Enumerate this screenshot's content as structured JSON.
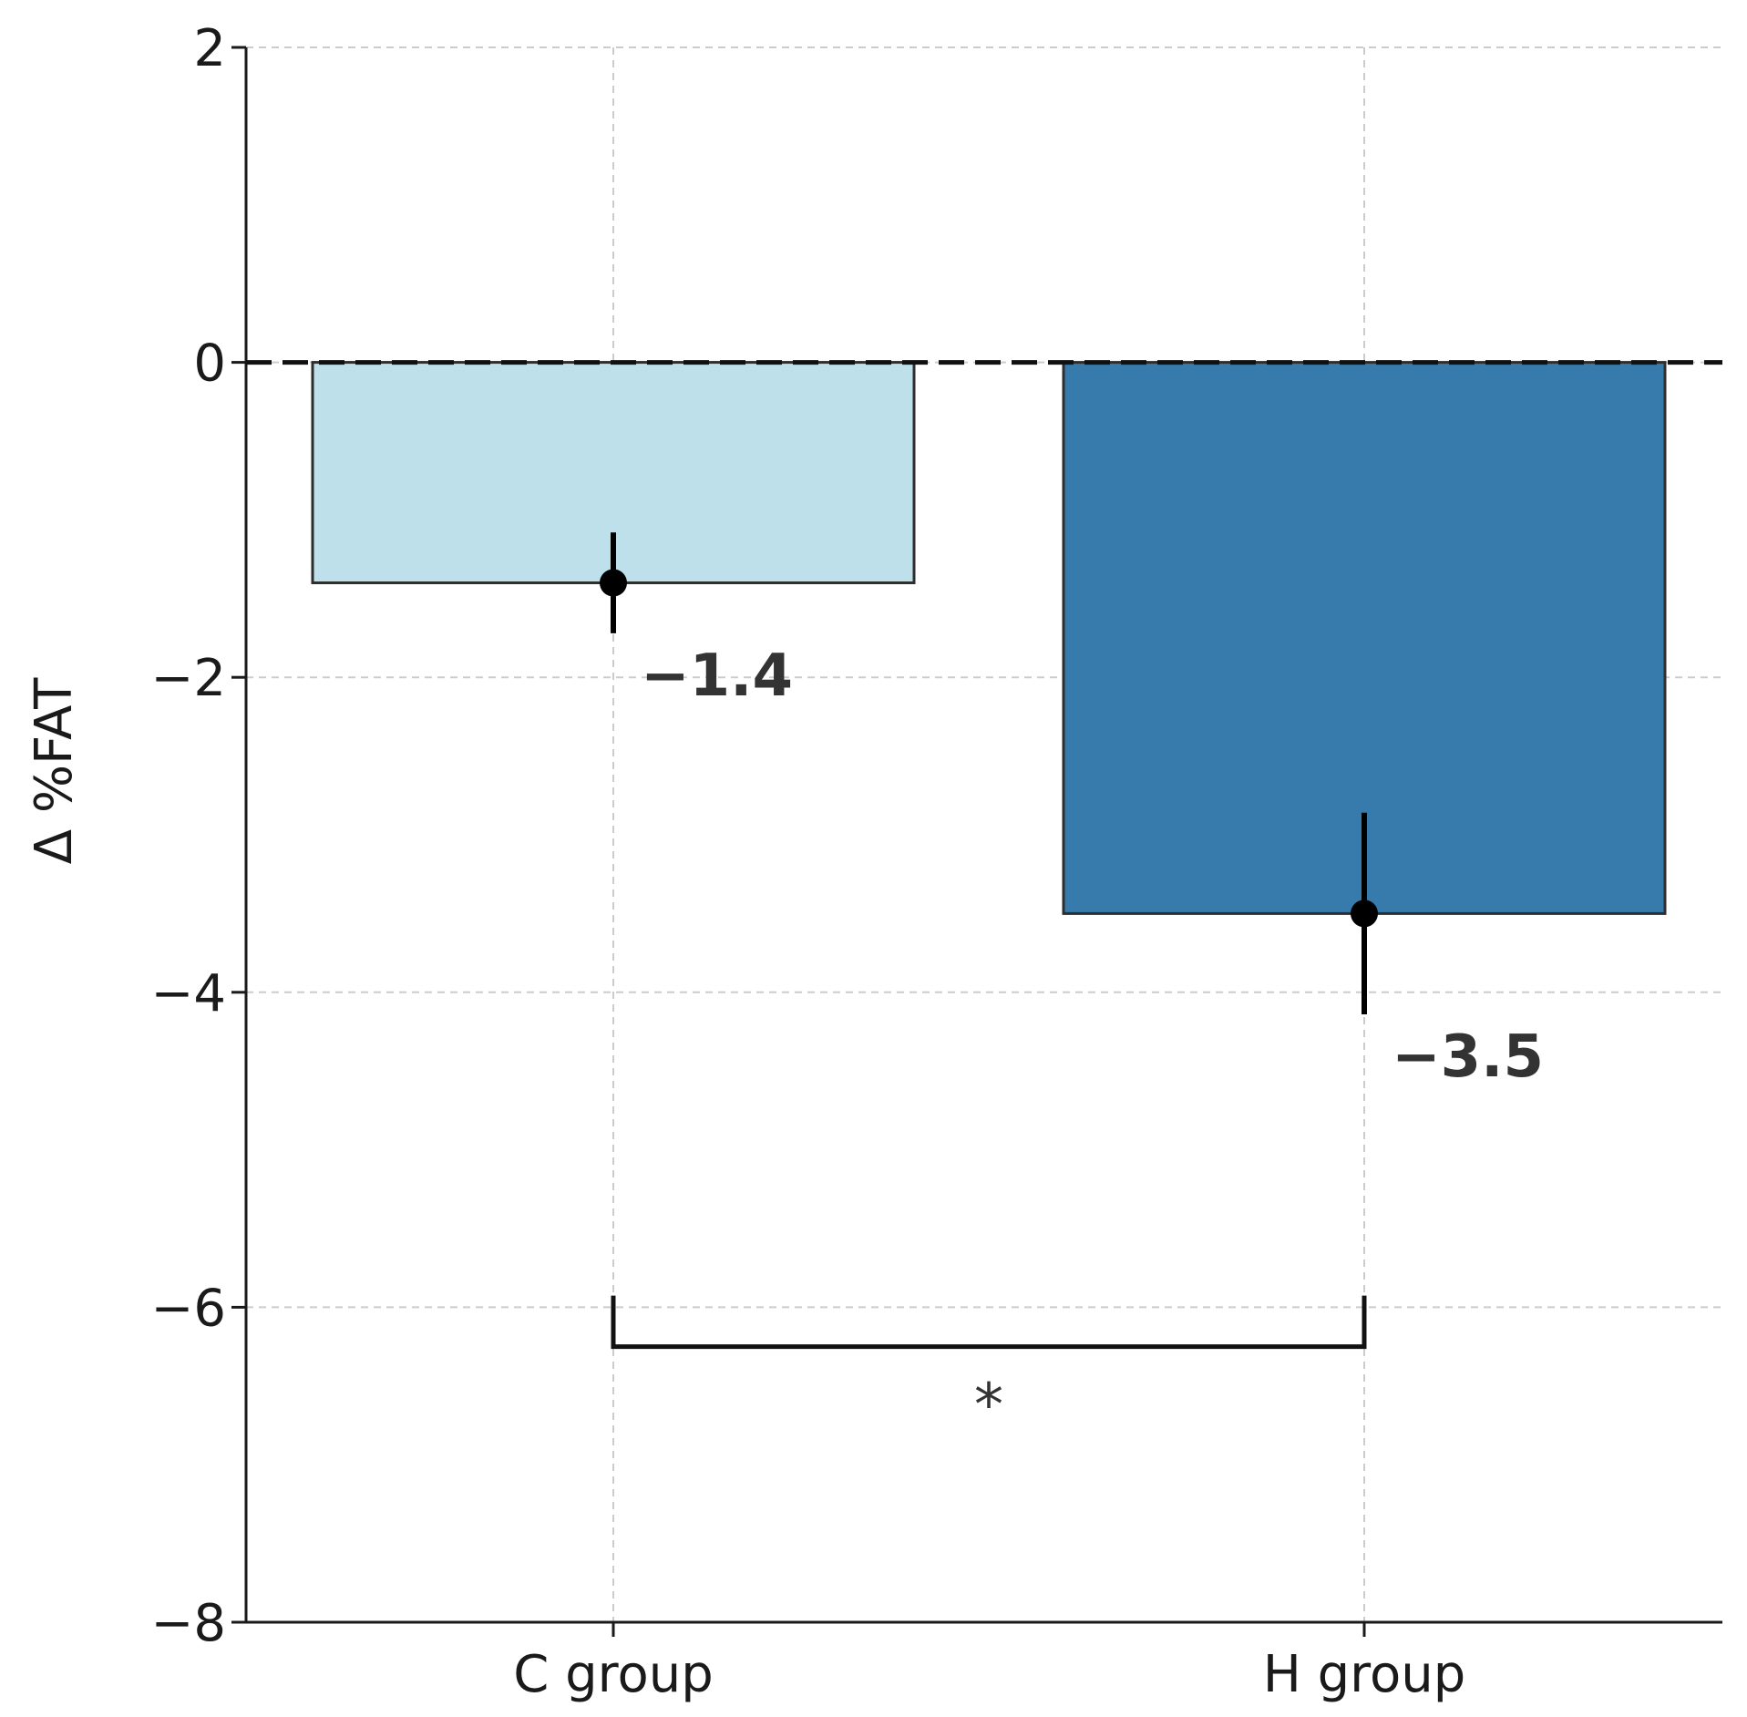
{
  "chart_data": {
    "type": "bar",
    "categories": [
      "C group",
      "H group"
    ],
    "values": [
      -1.4,
      -3.5
    ],
    "errors": [
      0.32,
      0.64
    ],
    "value_labels": [
      "−1.4",
      "−3.5"
    ],
    "colors": [
      "#bde0eb",
      "#367bab"
    ],
    "title": "",
    "xlabel": "",
    "ylabel": "Δ %FAT",
    "ylim": [
      -8,
      2
    ],
    "yticks": [
      2,
      0,
      -2,
      -4,
      -6,
      -8
    ],
    "ytick_labels": [
      "2",
      "0",
      "−2",
      "−4",
      "−6",
      "−8"
    ],
    "grid": true,
    "zero_reference_line": 0,
    "significance": {
      "between": [
        "C group",
        "H group"
      ],
      "label": "*",
      "y": -6.25
    }
  }
}
